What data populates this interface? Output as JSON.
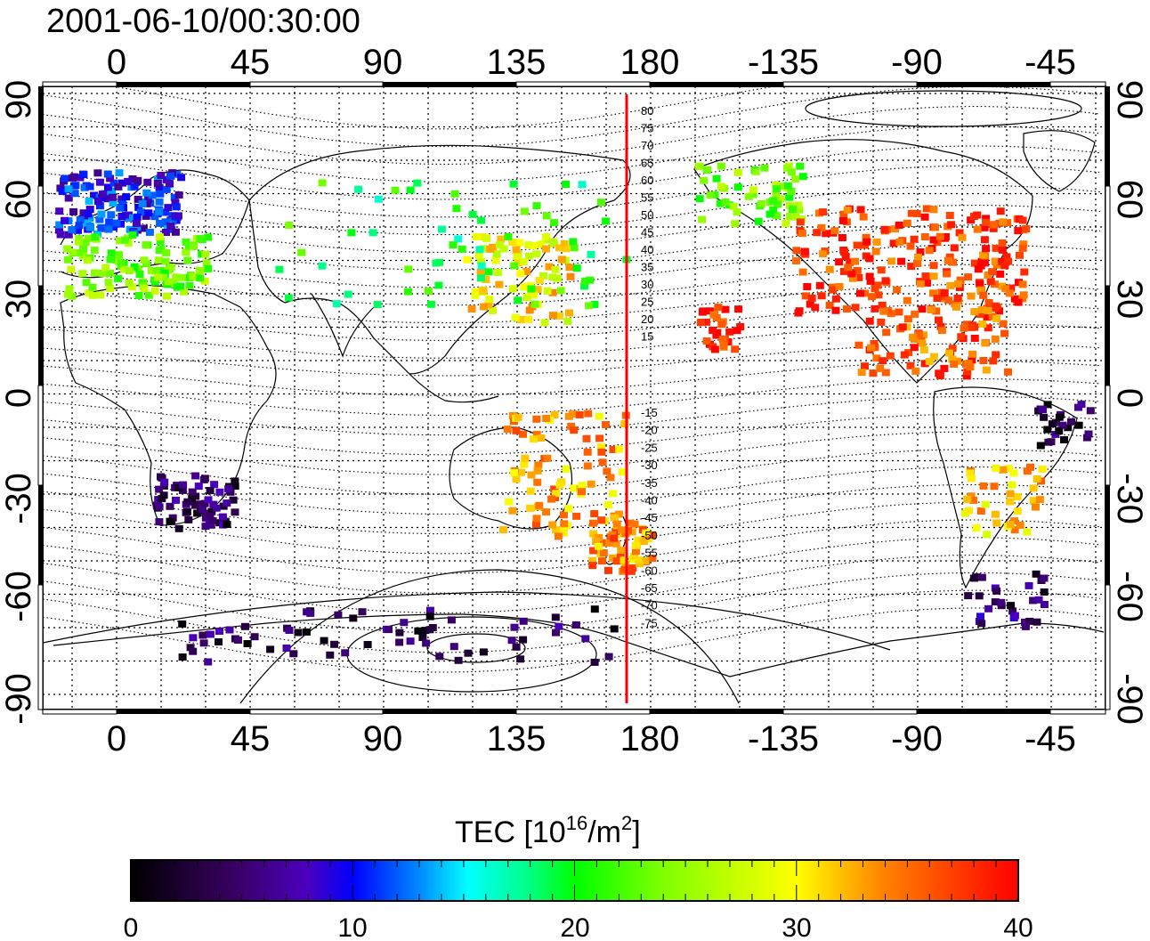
{
  "title": "2001-06-10/00:30:00",
  "map": {
    "lon_ticks": [
      "0",
      "45",
      "90",
      "135",
      "180",
      "-135",
      "-90",
      "-45"
    ],
    "lat_ticks": [
      "90",
      "60",
      "30",
      "0",
      "-30",
      "-60",
      "-90"
    ],
    "meridian_line": {
      "lon": 172,
      "color": "#ff0000"
    },
    "mlat_labels_upper": [
      "80",
      "75",
      "70",
      "65",
      "60",
      "55",
      "50",
      "45",
      "40",
      "35",
      "30",
      "25",
      "20",
      "15"
    ],
    "mlat_labels_lower": [
      "-15",
      "-20",
      "-25",
      "-30",
      "-35",
      "-40",
      "-45",
      "-50",
      "-55",
      "-60",
      "-65",
      "-70",
      "-75"
    ]
  },
  "colorbar": {
    "title_prefix": "TEC  [10",
    "title_sup1": "16",
    "title_mid": "/m",
    "title_sup2": "2",
    "title_suffix": "]",
    "ticks": [
      "0",
      "10",
      "20",
      "30",
      "40"
    ],
    "min": 0,
    "max": 40,
    "colors": [
      "#000000",
      "#3a0066",
      "#4b00c0",
      "#0000ff",
      "#0080ff",
      "#00ffff",
      "#00ff80",
      "#00ff00",
      "#80ff00",
      "#ffff00",
      "#ff8000",
      "#ff0000"
    ]
  }
}
